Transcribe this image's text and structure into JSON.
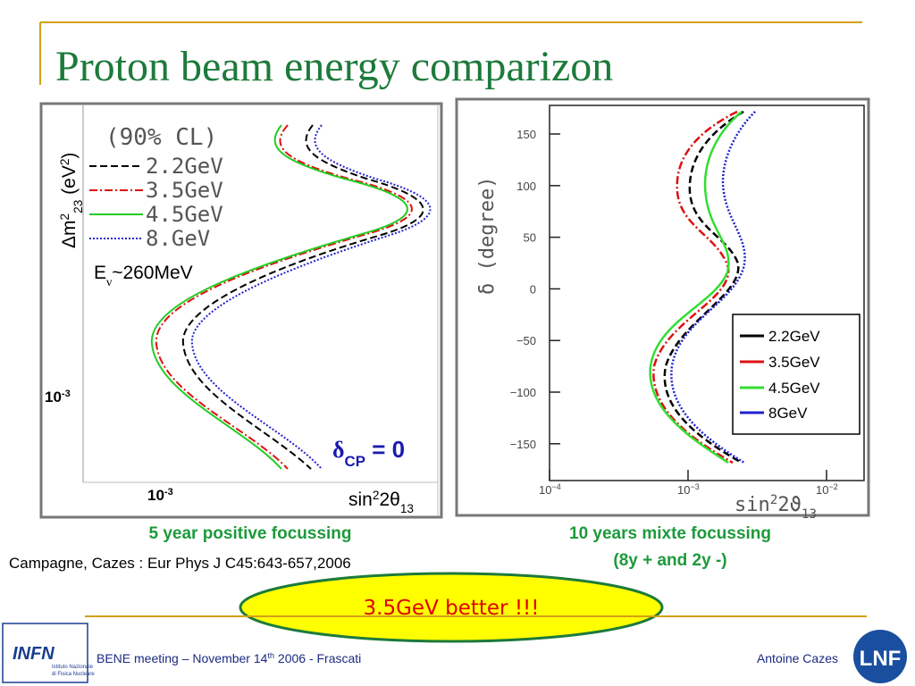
{
  "slide": {
    "title": "Proton beam energy comparizon"
  },
  "left_plot": {
    "legend_title": "(90% CL)",
    "legend": [
      "2.2GeV",
      "3.5GeV",
      "4.5GeV",
      "8.GeV"
    ],
    "note": [
      "E",
      "ν",
      "~260MeV"
    ],
    "y_label": [
      "Δm",
      "2",
      "23",
      " (eV",
      "2",
      ")"
    ],
    "y_tick": [
      "10",
      "-3"
    ],
    "x_tick": [
      "10",
      "-3"
    ],
    "x_label": [
      "sin",
      "2",
      "2θ",
      "13"
    ],
    "delta": [
      "δ",
      "CP",
      " = 0"
    ]
  },
  "right_plot": {
    "y_label": "δ (degree)",
    "yticks": [
      150,
      100,
      50,
      0,
      "−50",
      "−100",
      "−150"
    ],
    "xticks": [
      [
        "10",
        "−4"
      ],
      [
        "10",
        "−3"
      ],
      [
        "10",
        "−2"
      ]
    ],
    "x_label": [
      "sin",
      "2",
      "2ϑ",
      "13"
    ],
    "legend": [
      "2.2GeV",
      "3.5GeV",
      "4.5GeV",
      "8GeV"
    ]
  },
  "captions": {
    "left": "5 year positive focussing",
    "right": [
      "10 years mixte focussing",
      "(8y + and 2y -)"
    ],
    "citation": "Campagne, Cazes : Eur Phys J C45:643-657,2006"
  },
  "callout": "3.5GeV better !!!",
  "footer": {
    "event": [
      "BENE meeting – November 14",
      "th",
      " 2006 - Frascati"
    ],
    "author": "Antoine Cazes",
    "logo_left": "INFN",
    "logo_left_sub": [
      "Istituto Nazionale",
      "di Fisica Nucleare"
    ],
    "logo_right": "LNF"
  }
}
